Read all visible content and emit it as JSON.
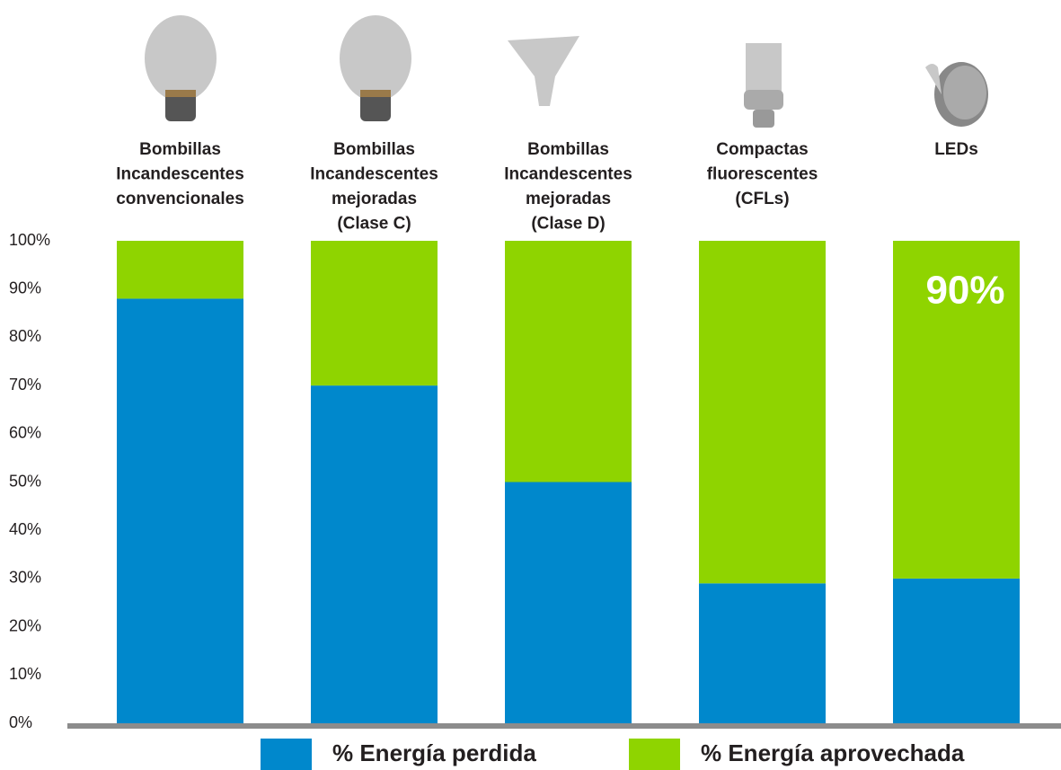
{
  "chart_data": {
    "type": "stacked_bar",
    "categories": [
      [
        "Bombillas",
        "Incandescentes",
        "convencionales"
      ],
      [
        "Bombillas",
        "Incandescentes",
        "mejoradas",
        "(Clase C)"
      ],
      [
        "Bombillas",
        "Incandescentes",
        "mejoradas",
        "(Clase D)"
      ],
      [
        "Compactas",
        "fluorescentes",
        "(CFLs)"
      ],
      [
        "LEDs"
      ]
    ],
    "series": [
      {
        "name": "% Energía perdida",
        "color": "#0088cc",
        "values": [
          88,
          70,
          50,
          29,
          30
        ]
      },
      {
        "name": "% Energía aprovechada",
        "color": "#8fd400",
        "values": [
          12,
          30,
          50,
          71,
          70
        ]
      }
    ],
    "annotation": "90%",
    "ylim": [
      0,
      100
    ],
    "yticks": [
      {
        "value": 0,
        "label": "0%"
      },
      {
        "value": 10,
        "label": "10%"
      },
      {
        "value": 20,
        "label": "20%"
      },
      {
        "value": 30,
        "label": "30%"
      },
      {
        "value": 40,
        "label": "40%"
      },
      {
        "value": 50,
        "label": "50%"
      },
      {
        "value": 60,
        "label": "60%"
      },
      {
        "value": 70,
        "label": "70%"
      },
      {
        "value": 80,
        "label": "80%"
      },
      {
        "value": 90,
        "label": "90%"
      },
      {
        "value": 100,
        "label": "100%"
      }
    ],
    "legend": "bottom"
  }
}
